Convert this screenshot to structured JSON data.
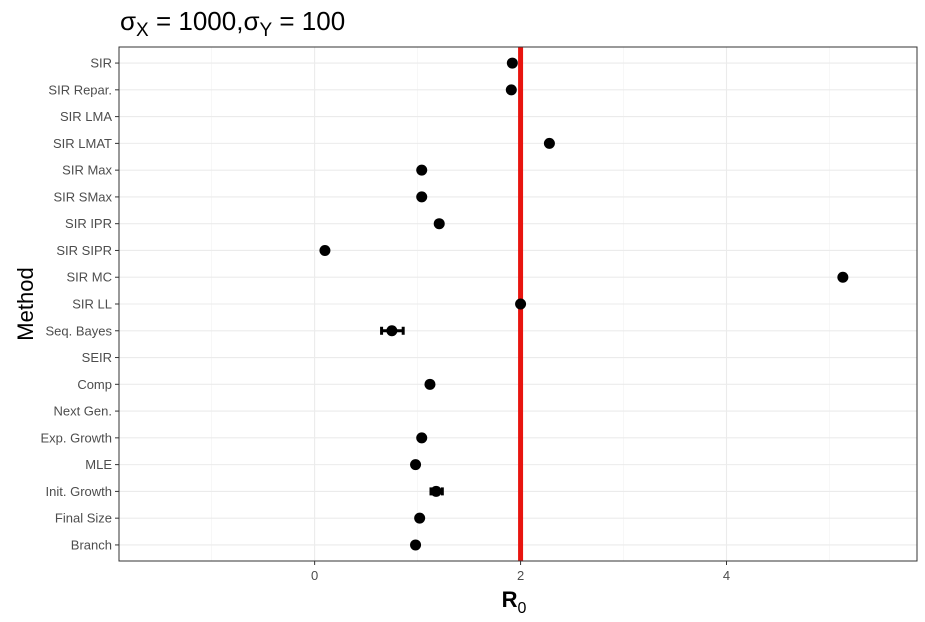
{
  "chart_data": {
    "type": "scatter",
    "title_parts": {
      "sigma1": "σ",
      "sub1": "X",
      "eq1": " = 1000,",
      "sigma2": "σ",
      "sub2": "Y",
      "eq2": " = 100"
    },
    "xlabel_main": "R",
    "xlabel_sub": "0",
    "ylabel": "Method",
    "xlim": [
      -1.9,
      5.85
    ],
    "x_major_ticks": [
      0,
      2,
      4
    ],
    "x_tick_labels": [
      "0",
      "2",
      "4"
    ],
    "x_minor_ticks": [
      -1,
      1,
      3,
      5
    ],
    "grid": true,
    "reference_line": {
      "x": 2,
      "color": "#e8140f"
    },
    "point_color": "#000000",
    "categories": [
      "SIR",
      "SIR Repar.",
      "SIR LMA",
      "SIR LMAT",
      "SIR Max",
      "SIR SMax",
      "SIR IPR",
      "SIR SIPR",
      "SIR MC",
      "SIR LL",
      "Seq. Bayes",
      "SEIR",
      "Comp",
      "Next Gen.",
      "Exp. Growth",
      "MLE",
      "Init. Growth",
      "Final Size",
      "Branch"
    ],
    "points": [
      {
        "category": "SIR",
        "x": 1.92
      },
      {
        "category": "SIR Repar.",
        "x": 1.91
      },
      {
        "category": "SIR LMA",
        "x": null
      },
      {
        "category": "SIR LMAT",
        "x": 2.28
      },
      {
        "category": "SIR Max",
        "x": 1.04
      },
      {
        "category": "SIR SMax",
        "x": 1.04
      },
      {
        "category": "SIR IPR",
        "x": 1.21
      },
      {
        "category": "SIR SIPR",
        "x": 0.1
      },
      {
        "category": "SIR MC",
        "x": 5.13
      },
      {
        "category": "SIR LL",
        "x": 2.0
      },
      {
        "category": "Seq. Bayes",
        "x": 0.75,
        "lower": 0.65,
        "upper": 0.86
      },
      {
        "category": "SEIR",
        "x": null
      },
      {
        "category": "Comp",
        "x": 1.12
      },
      {
        "category": "Next Gen.",
        "x": null
      },
      {
        "category": "Exp. Growth",
        "x": 1.04
      },
      {
        "category": "MLE",
        "x": 0.98
      },
      {
        "category": "Init. Growth",
        "x": 1.18,
        "lower": 1.13,
        "upper": 1.24
      },
      {
        "category": "Final Size",
        "x": 1.02
      },
      {
        "category": "Branch",
        "x": 0.98
      }
    ]
  }
}
